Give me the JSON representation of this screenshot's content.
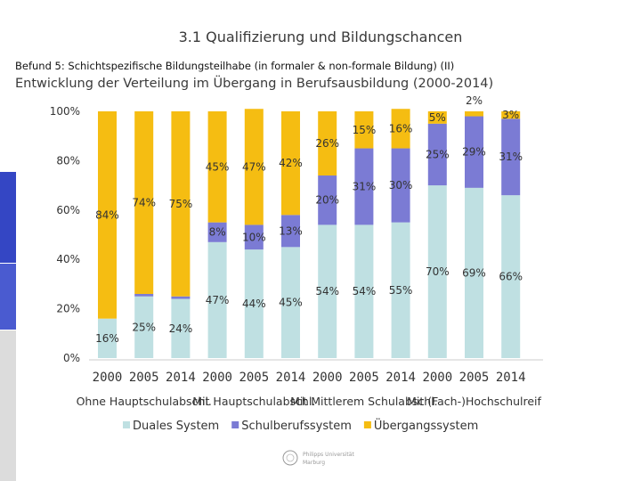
{
  "slide": {
    "title": "3.1 Qualifizierung und Bildungschancen",
    "finding": "Befund 5: Schichtspezifische Bildungsteilhabe (in formaler & non-formale Bildung) (II)",
    "subtitle": "Entwicklung der Verteilung im Übergang in Berufsausbildung (2000-2014)"
  },
  "logo": {
    "line1": "Philipps Universität",
    "line2": "Marburg"
  },
  "colors": {
    "duales": "#bfe0e2",
    "schulberuf": "#7b7bd4",
    "uebergang": "#f5bd12",
    "side_accent": "#3b4cc0"
  },
  "chart_data": {
    "type": "bar",
    "stacked": true,
    "ylim": [
      0,
      100
    ],
    "y_ticks": [
      "0%",
      "20%",
      "40%",
      "60%",
      "80%",
      "100%"
    ],
    "categories": [
      "2000",
      "2005",
      "2014",
      "2000",
      "2005",
      "2014",
      "2000",
      "2005",
      "2014",
      "2000",
      "2005",
      "2014"
    ],
    "groups": [
      "Ohne Hauptschulabschl.",
      "Mit Hauptschulabschl.",
      "Mit Mittlerem Schulabschl.",
      "Mit (Fach-)Hochschulreif"
    ],
    "series": [
      {
        "name": "Duales System",
        "color": "#bfe0e2",
        "values": [
          16,
          25,
          24,
          47,
          44,
          45,
          54,
          54,
          55,
          70,
          69,
          66
        ],
        "labels": [
          "16%",
          "25%",
          "24%",
          "47%",
          "44%",
          "45%",
          "54%",
          "54%",
          "55%",
          "70%",
          "69%",
          "66%"
        ]
      },
      {
        "name": "Schulberufssystem",
        "color": "#7b7bd4",
        "values": [
          0,
          1,
          1,
          8,
          10,
          13,
          20,
          31,
          30,
          25,
          29,
          31
        ],
        "labels": [
          "0%",
          "1%",
          "1%",
          "8%",
          "10%",
          "13%",
          "20%",
          "31%",
          "30%",
          "25%",
          "29%",
          "31%"
        ]
      },
      {
        "name": "Übergangssystem",
        "color": "#f5bd12",
        "values": [
          84,
          74,
          75,
          45,
          47,
          42,
          26,
          15,
          16,
          5,
          2,
          3
        ],
        "labels": [
          "84%",
          "74%",
          "75%",
          "45%",
          "47%",
          "42%",
          "26%",
          "15%",
          "16%",
          "5%",
          "2%",
          "3%"
        ]
      }
    ],
    "legend": "bottom"
  }
}
